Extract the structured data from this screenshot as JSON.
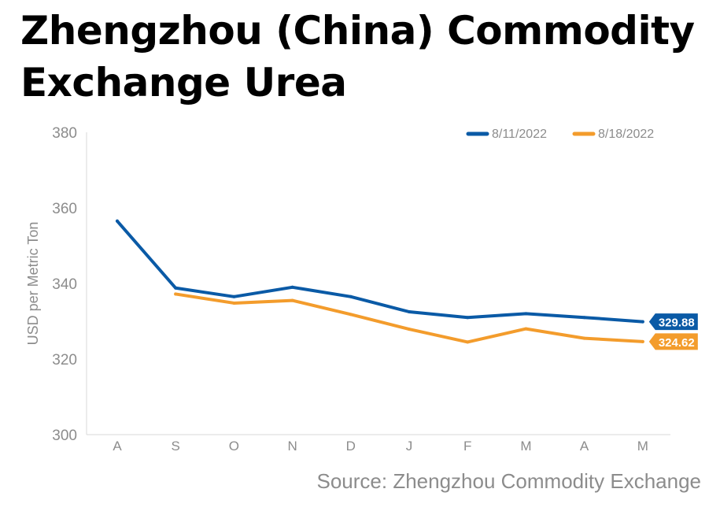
{
  "title_lines": [
    "Zhengzhou (China) Commodity",
    "Exchange Urea"
  ],
  "source": "Source: Zhengzhou Commodity Exchange",
  "chart_data": {
    "type": "line",
    "title": "Zhengzhou (China) Commodity Exchange Urea",
    "ylabel": "USD per Metric Ton",
    "xlabel": "",
    "ylim": [
      300,
      380
    ],
    "yticks": [
      300,
      320,
      340,
      360,
      380
    ],
    "categories": [
      "A",
      "S",
      "O",
      "N",
      "D",
      "J",
      "F",
      "M",
      "A",
      "M"
    ],
    "grid": false,
    "legend_position": "top-right",
    "series": [
      {
        "name": "8/11/2022",
        "color": "#0a5aa6",
        "values": [
          356.5,
          338.8,
          336.5,
          339.0,
          336.5,
          332.5,
          331.0,
          332.0,
          331.0,
          329.88
        ],
        "end_label": "329.88"
      },
      {
        "name": "8/18/2022",
        "color": "#f39c2c",
        "values": [
          null,
          337.2,
          334.8,
          335.5,
          331.8,
          327.9,
          324.5,
          328.0,
          325.5,
          324.62
        ],
        "end_label": "324.62"
      }
    ]
  }
}
